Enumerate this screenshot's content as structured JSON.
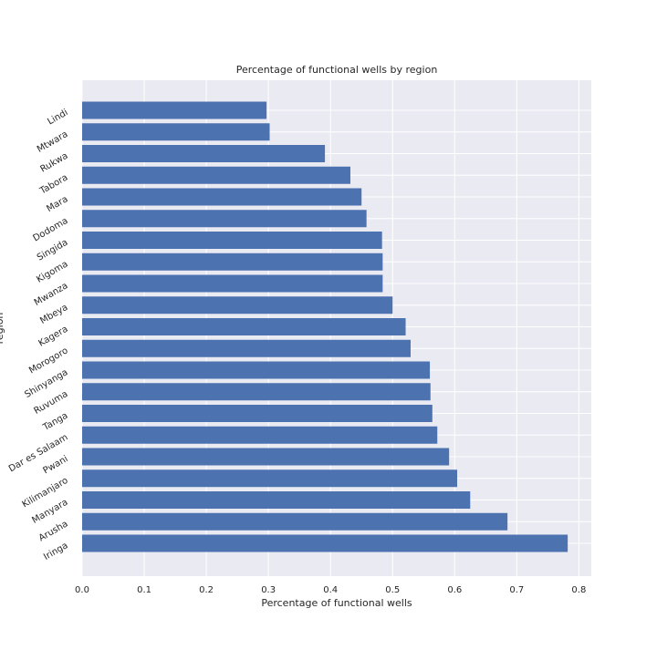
{
  "chart_data": {
    "type": "bar",
    "orientation": "horizontal",
    "title": "Percentage of functional wells by region",
    "xlabel": "Percentage of functional wells",
    "ylabel": "region",
    "xlim": [
      0,
      0.82
    ],
    "x_ticks": [
      0.0,
      0.1,
      0.2,
      0.3,
      0.4,
      0.5,
      0.6,
      0.7,
      0.8
    ],
    "x_tick_labels": [
      "0.0",
      "0.1",
      "0.2",
      "0.3",
      "0.4",
      "0.5",
      "0.6",
      "0.7",
      "0.8"
    ],
    "grid": true,
    "legend": false,
    "bar_color": "#4c72b0",
    "background_color": "#eaeaf2",
    "categories": [
      "Iringa",
      "Arusha",
      "Manyara",
      "Kilimanjaro",
      "Pwani",
      "Dar es Salaam",
      "Tanga",
      "Ruvuma",
      "Shinyanga",
      "Morogoro",
      "Kagera",
      "Mbeya",
      "Mwanza",
      "Kigoma",
      "Singida",
      "Dodoma",
      "Mara",
      "Tabora",
      "Rukwa",
      "Mtwara",
      "Lindi"
    ],
    "values": [
      0.782,
      0.685,
      0.625,
      0.604,
      0.591,
      0.572,
      0.564,
      0.561,
      0.56,
      0.529,
      0.521,
      0.5,
      0.484,
      0.484,
      0.483,
      0.458,
      0.45,
      0.432,
      0.391,
      0.302,
      0.297
    ]
  }
}
